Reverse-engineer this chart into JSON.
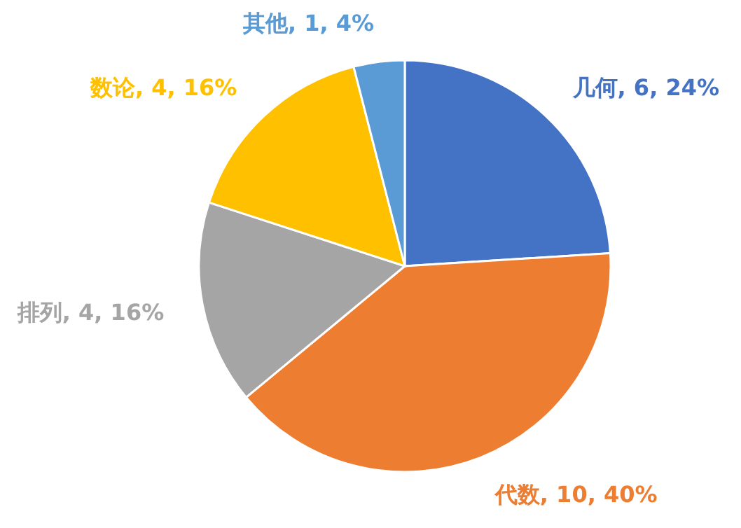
{
  "chart_data": {
    "type": "pie",
    "categories": [
      "几何",
      "代数",
      "排列",
      "数论",
      "其他"
    ],
    "values": [
      24,
      40,
      16,
      16,
      4
    ],
    "value_labels": [
      ", 6, 24%",
      ", 10, 40%",
      ", 4, 16%",
      ", 4, 16%",
      ", 1, 4%"
    ],
    "colors": [
      "#4472c4",
      "#ed7d31",
      "#a5a5a5",
      "#ffc000",
      "#5b9bd5"
    ],
    "legend": false
  }
}
